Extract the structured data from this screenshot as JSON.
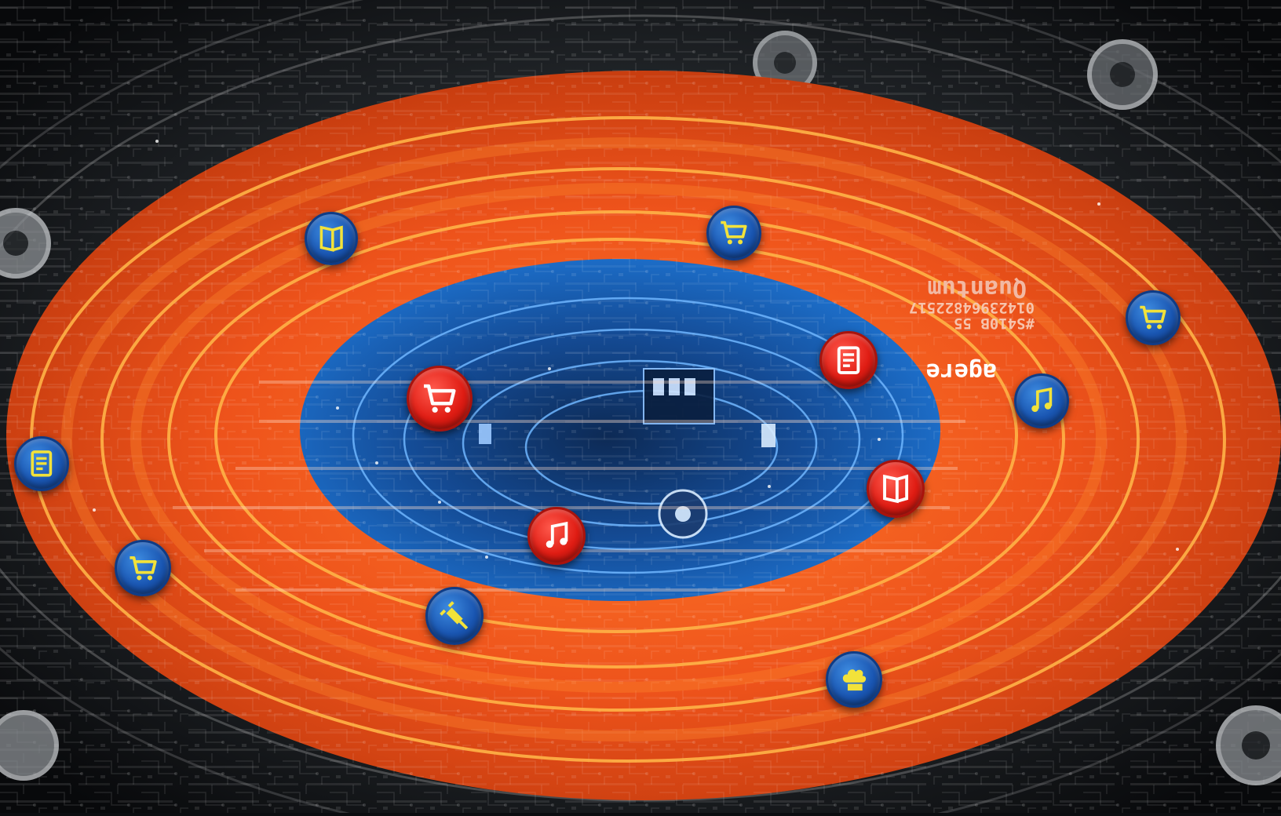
{
  "image": {
    "kind": "illustration",
    "overlay_text": {
      "brand": "Quantum",
      "code_line_1": "01423964822517",
      "code_line_2": "#S410B 55",
      "small_brand": "agere"
    }
  },
  "palette": {
    "background": "#0b0d10",
    "orange_ring": "#f0541e",
    "orange_line": "#ffb347",
    "blue_core": "#1e6fd6",
    "badge_blue": "#1a56b2",
    "badge_red": "#e01d14",
    "icon_yellow": "#f2e23a"
  },
  "icons": [
    {
      "name": "book-icon",
      "color": "blue"
    },
    {
      "name": "shopping-cart-icon",
      "color": "blue"
    },
    {
      "name": "shopping-cart-icon",
      "color": "blue"
    },
    {
      "name": "music-note-icon",
      "color": "blue"
    },
    {
      "name": "document-icon",
      "color": "blue"
    },
    {
      "name": "shopping-cart-icon",
      "color": "blue"
    },
    {
      "name": "plug-icon",
      "color": "blue"
    },
    {
      "name": "chef-hat-icon",
      "color": "blue"
    },
    {
      "name": "shopping-cart-icon",
      "color": "red"
    },
    {
      "name": "document-icon",
      "color": "red"
    },
    {
      "name": "book-icon",
      "color": "red"
    },
    {
      "name": "music-note-icon",
      "color": "red"
    }
  ]
}
